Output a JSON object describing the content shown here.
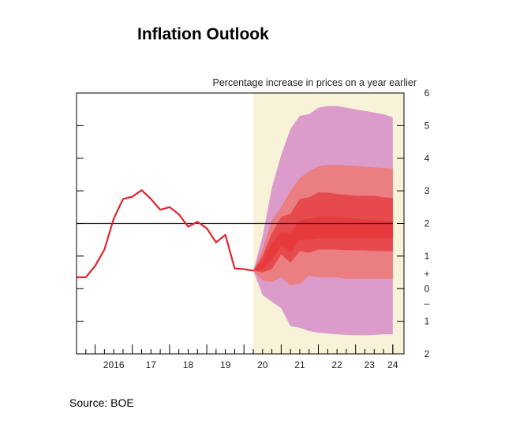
{
  "title": "Inflation Outlook",
  "source": "Source: BOE",
  "chart_data": {
    "type": "fan",
    "title": "Inflation Outlook",
    "ylabel": "Percentage increase in prices on a year earlier",
    "xlabel": "",
    "xlim": [
      2015.5,
      2024.3
    ],
    "ylim": [
      -2,
      6
    ],
    "y_ticks": [
      {
        "value": 6,
        "label": "6"
      },
      {
        "value": 5,
        "label": "5"
      },
      {
        "value": 4,
        "label": "4"
      },
      {
        "value": 3,
        "label": "3"
      },
      {
        "value": 2,
        "label": "2"
      },
      {
        "value": 1,
        "label": "1"
      },
      {
        "value": 0.45,
        "label": "+"
      },
      {
        "value": 0,
        "label": "0"
      },
      {
        "value": -0.45,
        "label": "–"
      },
      {
        "value": -1,
        "label": "1"
      },
      {
        "value": -2,
        "label": "2"
      }
    ],
    "x_ticks": [
      {
        "value": 2016.5,
        "label": "2016"
      },
      {
        "value": 2017.5,
        "label": "17"
      },
      {
        "value": 2018.5,
        "label": "18"
      },
      {
        "value": 2019.5,
        "label": "19"
      },
      {
        "value": 2020.5,
        "label": "20"
      },
      {
        "value": 2021.5,
        "label": "21"
      },
      {
        "value": 2022.5,
        "label": "22"
      },
      {
        "value": 2023.5,
        "label": "23"
      },
      {
        "value": 2024.0,
        "label": "24"
      }
    ],
    "target_line": 2.0,
    "forecast_start": 2020.25,
    "colors": {
      "history": "#e0242e",
      "target": "#1a1a1a",
      "shade": "#f8f3d8",
      "band_outer": "#dc9ccb",
      "band_middle": "#ea7e80",
      "band_inner": "#e64a4c",
      "band_core": "#e83a3c"
    },
    "history": {
      "x": [
        2015.5,
        2015.75,
        2016.0,
        2016.25,
        2016.5,
        2016.75,
        2017.0,
        2017.25,
        2017.5,
        2017.75,
        2018.0,
        2018.25,
        2018.5,
        2018.75,
        2019.0,
        2019.25,
        2019.5,
        2019.75,
        2020.0,
        2020.25
      ],
      "y": [
        0.35,
        0.35,
        0.7,
        1.2,
        2.15,
        2.75,
        2.82,
        3.02,
        2.75,
        2.42,
        2.5,
        2.28,
        1.9,
        2.05,
        1.85,
        1.42,
        1.65,
        0.62,
        0.6,
        0.55
      ]
    },
    "fan": {
      "x": [
        2020.25,
        2020.5,
        2020.75,
        2021.0,
        2021.25,
        2021.5,
        2021.75,
        2022.0,
        2022.25,
        2022.5,
        2022.75,
        2023.0,
        2023.25,
        2023.5,
        2023.75,
        2024.0
      ],
      "outer_upper": [
        0.55,
        1.6,
        3.1,
        4.1,
        4.9,
        5.3,
        5.35,
        5.55,
        5.6,
        5.6,
        5.55,
        5.5,
        5.45,
        5.4,
        5.35,
        5.25
      ],
      "outer_lower": [
        0.55,
        -0.2,
        -0.4,
        -0.6,
        -1.15,
        -1.2,
        -1.3,
        -1.35,
        -1.38,
        -1.4,
        -1.42,
        -1.43,
        -1.43,
        -1.42,
        -1.4,
        -1.4
      ],
      "middle_upper": [
        0.55,
        1.2,
        2.1,
        2.5,
        3.0,
        3.4,
        3.6,
        3.75,
        3.8,
        3.8,
        3.78,
        3.76,
        3.74,
        3.72,
        3.7,
        3.68
      ],
      "middle_lower": [
        0.55,
        0.25,
        0.2,
        0.35,
        0.1,
        0.15,
        0.4,
        0.35,
        0.35,
        0.35,
        0.3,
        0.3,
        0.3,
        0.3,
        0.3,
        0.3
      ],
      "inner_upper": [
        0.55,
        1.0,
        1.7,
        2.2,
        2.3,
        2.75,
        2.8,
        2.95,
        2.95,
        2.9,
        2.88,
        2.85,
        2.85,
        2.85,
        2.8,
        2.78
      ],
      "inner_lower": [
        0.55,
        0.5,
        0.6,
        1.05,
        0.8,
        1.15,
        1.1,
        1.2,
        1.2,
        1.2,
        1.18,
        1.18,
        1.17,
        1.16,
        1.15,
        1.15
      ],
      "core_upper": [
        0.55,
        0.85,
        1.4,
        1.75,
        1.7,
        2.1,
        2.15,
        2.2,
        2.22,
        2.2,
        2.18,
        2.15,
        2.12,
        2.1,
        2.08,
        2.05
      ],
      "core_lower": [
        0.55,
        0.6,
        0.9,
        1.3,
        1.1,
        1.5,
        1.5,
        1.55,
        1.55,
        1.55,
        1.55,
        1.55,
        1.55,
        1.55,
        1.55,
        1.55
      ]
    }
  }
}
